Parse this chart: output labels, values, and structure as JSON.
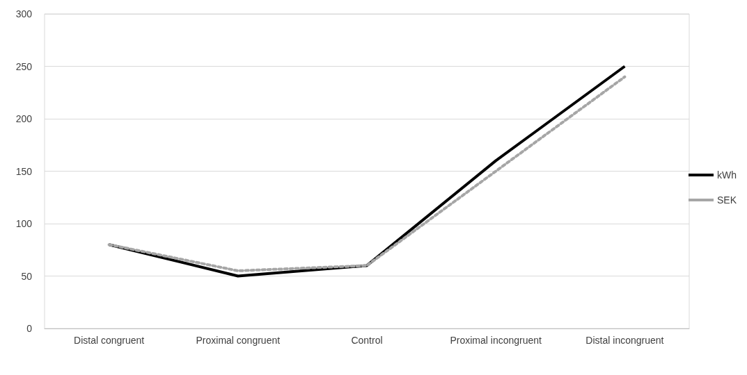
{
  "chart_data": {
    "type": "line",
    "categories": [
      "Distal congruent",
      "Proximal congruent",
      "Control",
      "Proximal incongruent",
      "Distal incongruent"
    ],
    "series": [
      {
        "name": "kWh",
        "color": "#000000",
        "values": [
          80,
          50,
          60,
          160,
          250
        ],
        "line_style": "solid"
      },
      {
        "name": "SEK",
        "color": "#a6a6a6",
        "values": [
          80,
          55,
          60,
          150,
          240
        ],
        "line_style": "dotted"
      }
    ],
    "ylim": [
      0,
      300
    ],
    "yticks": [
      0,
      50,
      100,
      150,
      200,
      250,
      300
    ],
    "grid": "y",
    "legend": "right",
    "marker": "none"
  }
}
